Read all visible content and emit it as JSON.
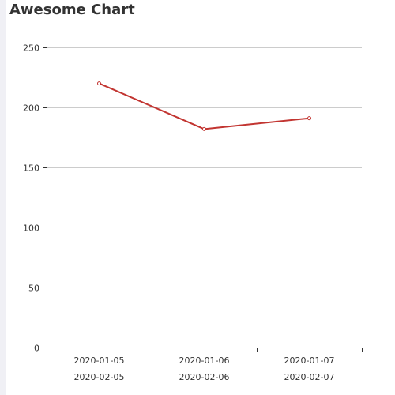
{
  "chart_data": {
    "type": "line",
    "title": "Awesome Chart",
    "categories": [
      "2020-01-05",
      "2020-01-06",
      "2020-01-07"
    ],
    "categories_secondary": [
      "2020-02-05",
      "2020-02-06",
      "2020-02-07"
    ],
    "values": [
      220,
      182,
      191
    ],
    "ylim": [
      0,
      250
    ],
    "yticks": [
      "0",
      "50",
      "100",
      "150",
      "200",
      "250"
    ],
    "xlabel": "",
    "ylabel": "",
    "grid": true,
    "line_color": "#c23531",
    "grid_color": "#cccccc",
    "axis_color": "#333333"
  }
}
